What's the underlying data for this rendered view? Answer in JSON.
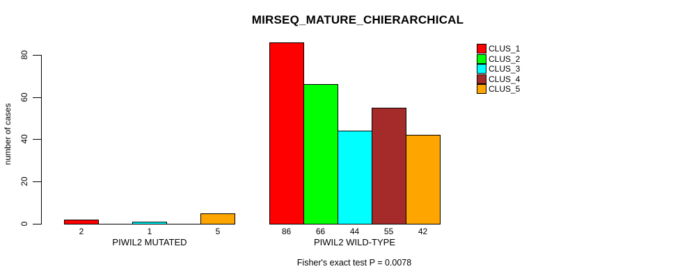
{
  "chart_data": {
    "type": "bar",
    "title": "MIRSEQ_MATURE_CHIERARCHICAL",
    "ylabel": "number of cases",
    "xlabel": "",
    "ylim": [
      0,
      87
    ],
    "yticks": [
      0,
      20,
      40,
      60,
      80
    ],
    "grid": false,
    "legend_position": "top-right",
    "series": [
      {
        "name": "CLUS_1",
        "color": "#FF0000"
      },
      {
        "name": "CLUS_2",
        "color": "#00FF00"
      },
      {
        "name": "CLUS_3",
        "color": "#00FFFF"
      },
      {
        "name": "CLUS_4",
        "color": "#A52A2A"
      },
      {
        "name": "CLUS_5",
        "color": "#FFA500"
      }
    ],
    "groups": [
      {
        "label": "PIWIL2 MUTATED",
        "values": [
          2,
          0,
          1,
          0,
          5
        ],
        "bar_labels": [
          "2",
          "",
          "1",
          "",
          "5"
        ]
      },
      {
        "label": "PIWIL2 WILD-TYPE",
        "values": [
          86,
          66,
          44,
          55,
          42
        ],
        "bar_labels": [
          "86",
          "66",
          "44",
          "55",
          "42"
        ]
      }
    ],
    "footnote": "Fisher's exact test P = 0.0078"
  }
}
